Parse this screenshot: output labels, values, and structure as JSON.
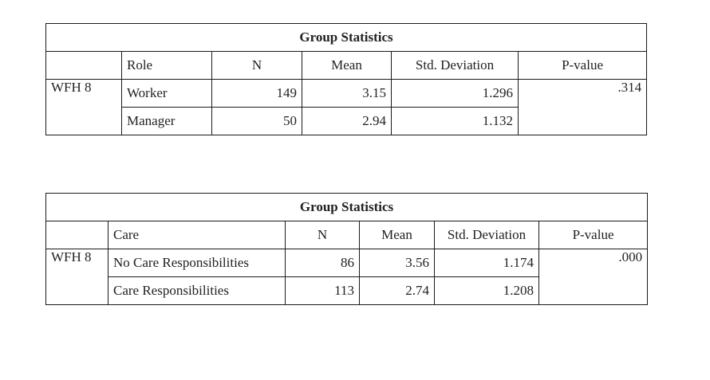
{
  "tables": [
    {
      "title": "Group Statistics",
      "headers": {
        "group_col": "Role",
        "n": "N",
        "mean": "Mean",
        "sd": "Std. Deviation",
        "p": "P-value"
      },
      "variable": "WFH 8",
      "rows": [
        {
          "group": "Worker",
          "n": "149",
          "mean": "3.15",
          "sd": "1.296"
        },
        {
          "group": "Manager",
          "n": "50",
          "mean": "2.94",
          "sd": "1.132"
        }
      ],
      "p_value": ".314"
    },
    {
      "title": "Group Statistics",
      "headers": {
        "group_col": "Care",
        "n": "N",
        "mean": "Mean",
        "sd": "Std. Deviation",
        "p": "P-value"
      },
      "variable": "WFH 8",
      "rows": [
        {
          "group": "No Care Responsibilities",
          "n": "86",
          "mean": "3.56",
          "sd": "1.174"
        },
        {
          "group": "Care Responsibilities",
          "n": "113",
          "mean": "2.74",
          "sd": "1.208"
        }
      ],
      "p_value": ".000"
    }
  ]
}
